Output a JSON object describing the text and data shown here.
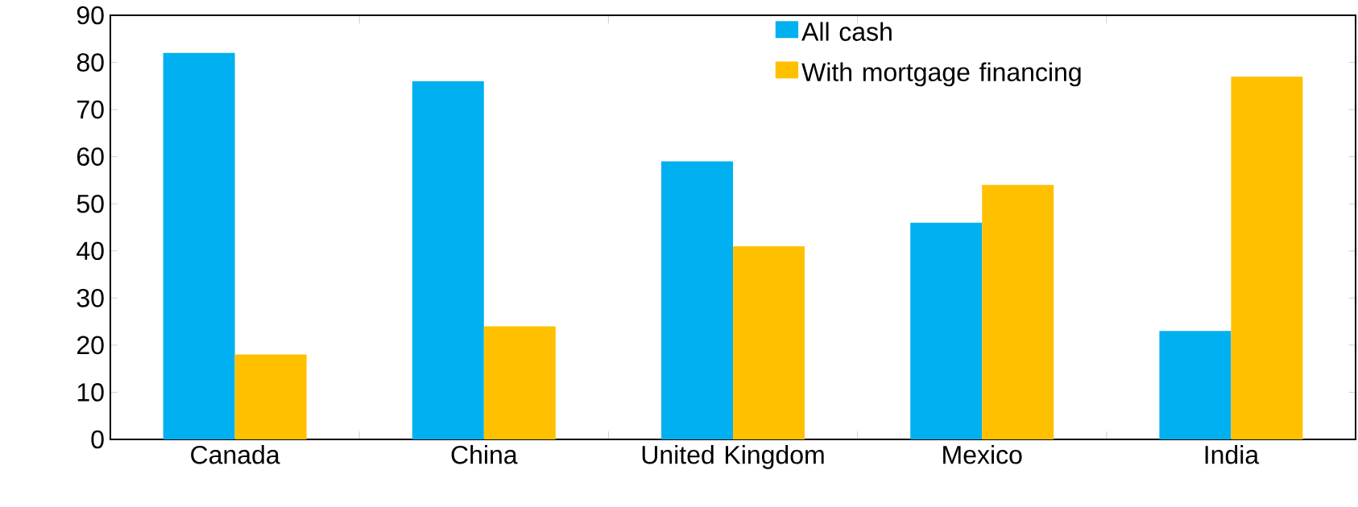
{
  "chart_data": {
    "type": "bar",
    "categories": [
      "Canada",
      "China",
      "United Kingdom",
      "Mexico",
      "India"
    ],
    "series": [
      {
        "name": "All cash",
        "color": "#00b0f0",
        "values": [
          82,
          76,
          59,
          46,
          23
        ]
      },
      {
        "name": "With mortgage financing",
        "color": "#ffc000",
        "values": [
          18,
          24,
          41,
          54,
          77
        ]
      }
    ],
    "ylim": [
      0,
      90
    ],
    "yticks": [
      0,
      10,
      20,
      30,
      40,
      50,
      60,
      70,
      80,
      90
    ],
    "grid": false,
    "legend": "top right"
  }
}
